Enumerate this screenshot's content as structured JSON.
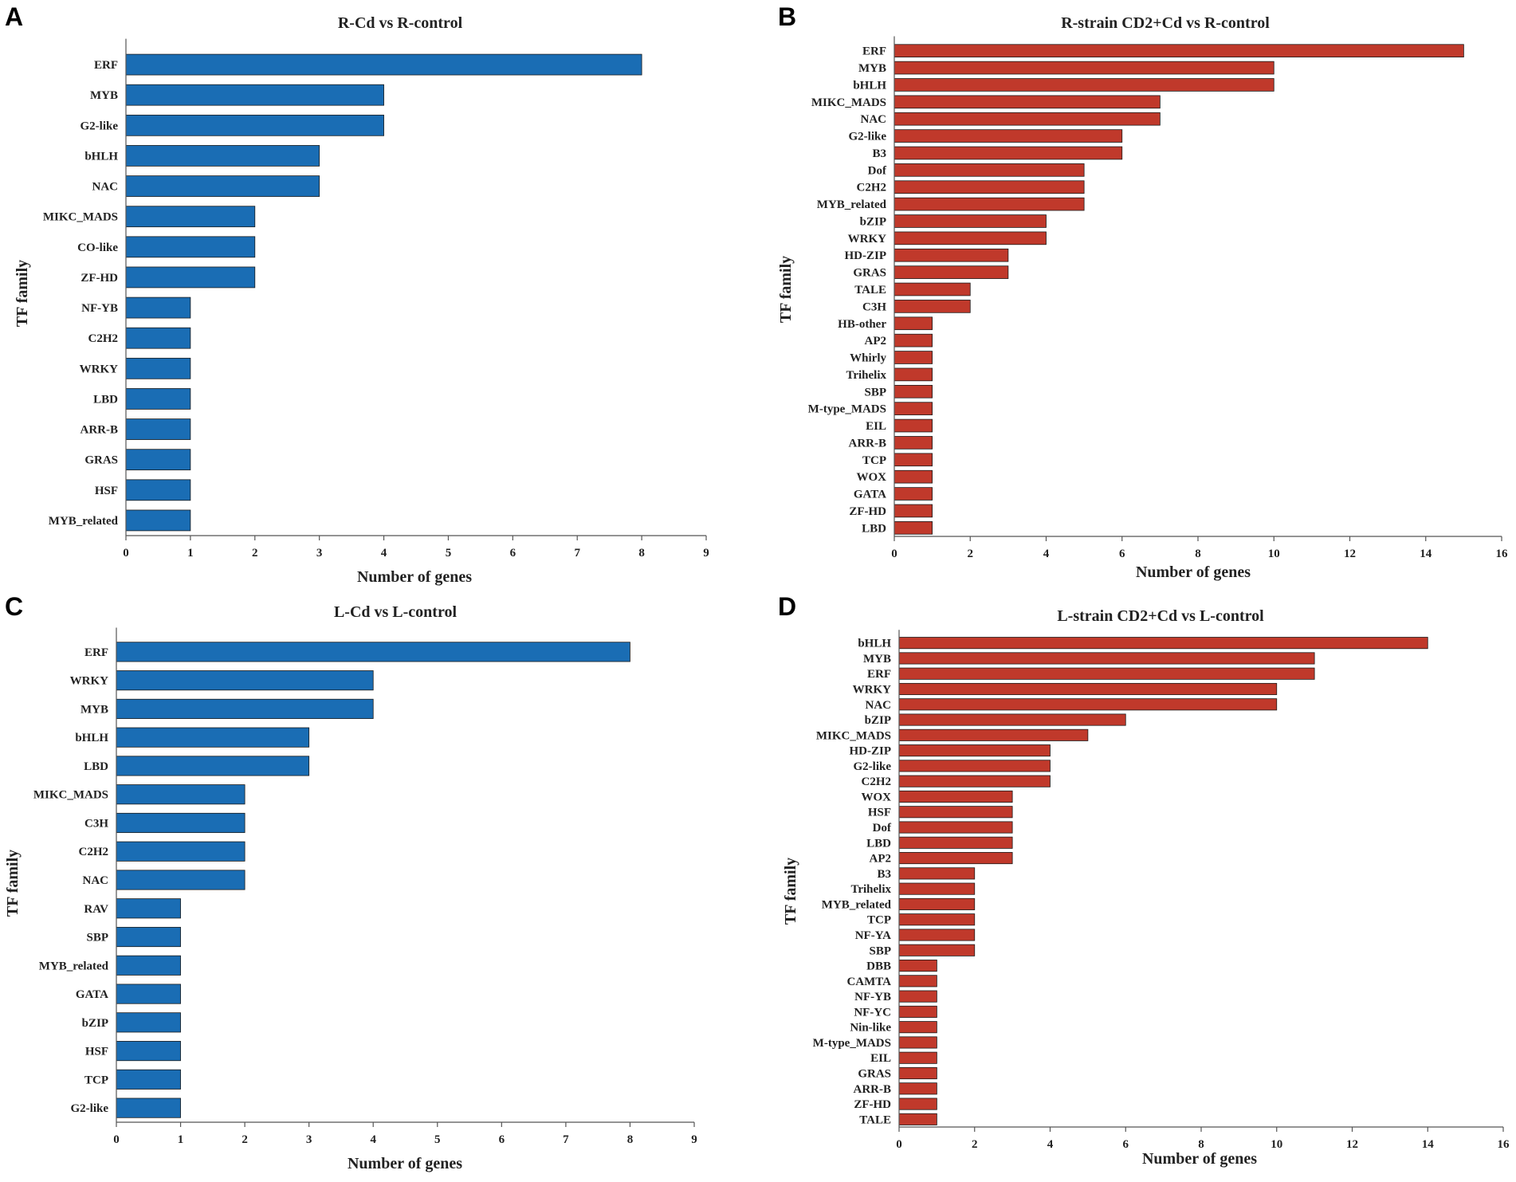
{
  "chart_data": [
    {
      "panel": "A",
      "type": "bar",
      "orientation": "horizontal",
      "title": "R-Cd  vs R-control",
      "xlabel": "Number of genes",
      "ylabel": "TF family",
      "xlim": [
        0,
        9
      ],
      "xticks": [
        0,
        1,
        2,
        3,
        4,
        5,
        6,
        7,
        8,
        9
      ],
      "color": "#1a6db4",
      "grid": false,
      "categories": [
        "ERF",
        "MYB",
        "G2-like",
        "bHLH",
        "NAC",
        "MIKC_MADS",
        "CO-like",
        "ZF-HD",
        "NF-YB",
        "C2H2",
        "WRKY",
        "LBD",
        "ARR-B",
        "GRAS",
        "HSF",
        "MYB_related"
      ],
      "values": [
        8,
        4,
        4,
        3,
        3,
        2,
        2,
        2,
        1,
        1,
        1,
        1,
        1,
        1,
        1,
        1
      ]
    },
    {
      "panel": "B",
      "type": "bar",
      "orientation": "horizontal",
      "title": "R-strain CD2+Cd vs R-control",
      "xlabel": "Number of genes",
      "ylabel": "TF family",
      "xlim": [
        0,
        16
      ],
      "xticks": [
        0,
        2,
        4,
        6,
        8,
        10,
        12,
        14,
        16
      ],
      "color": "#c0392b",
      "grid": false,
      "categories": [
        "ERF",
        "MYB",
        "bHLH",
        "MIKC_MADS",
        "NAC",
        "G2-like",
        "B3",
        "Dof",
        "C2H2",
        "MYB_related",
        "bZIP",
        "WRKY",
        "HD-ZIP",
        "GRAS",
        "TALE",
        "C3H",
        "HB-other",
        "AP2",
        "Whirly",
        "Trihelix",
        "SBP",
        "M-type_MADS",
        "EIL",
        "ARR-B",
        "TCP",
        "WOX",
        "GATA",
        "ZF-HD",
        "LBD"
      ],
      "values": [
        15,
        10,
        10,
        7,
        7,
        6,
        6,
        5,
        5,
        5,
        4,
        4,
        3,
        3,
        2,
        2,
        1,
        1,
        1,
        1,
        1,
        1,
        1,
        1,
        1,
        1,
        1,
        1,
        1
      ]
    },
    {
      "panel": "C",
      "type": "bar",
      "orientation": "horizontal",
      "title": "L-Cd  vs L-control",
      "xlabel": "Number of genes",
      "ylabel": "TF family",
      "xlim": [
        0,
        9
      ],
      "xticks": [
        0,
        1,
        2,
        3,
        4,
        5,
        6,
        7,
        8,
        9
      ],
      "color": "#1a6db4",
      "grid": false,
      "categories": [
        "ERF",
        "WRKY",
        "MYB",
        "bHLH",
        "LBD",
        "MIKC_MADS",
        "C3H",
        "C2H2",
        "NAC",
        "RAV",
        "SBP",
        "MYB_related",
        "GATA",
        "bZIP",
        "HSF",
        "TCP",
        "G2-like"
      ],
      "values": [
        8,
        4,
        4,
        3,
        3,
        2,
        2,
        2,
        2,
        1,
        1,
        1,
        1,
        1,
        1,
        1,
        1
      ]
    },
    {
      "panel": "D",
      "type": "bar",
      "orientation": "horizontal",
      "title": "L-strain CD2+Cd vs L-control",
      "xlabel": "Number of genes",
      "ylabel": "TF family",
      "xlim": [
        0,
        16
      ],
      "xticks": [
        0,
        2,
        4,
        6,
        8,
        10,
        12,
        14,
        16
      ],
      "color": "#c0392b",
      "grid": false,
      "categories": [
        "bHLH",
        "MYB",
        "ERF",
        "WRKY",
        "NAC",
        "bZIP",
        "MIKC_MADS",
        "HD-ZIP",
        "G2-like",
        "C2H2",
        "WOX",
        "HSF",
        "Dof",
        "LBD",
        "AP2",
        "B3",
        "Trihelix",
        "MYB_related",
        "TCP",
        "NF-YA",
        "SBP",
        "DBB",
        "CAMTA",
        "NF-YB",
        "NF-YC",
        "Nin-like",
        "M-type_MADS",
        "EIL",
        "GRAS",
        "ARR-B",
        "ZF-HD",
        "TALE"
      ],
      "values": [
        14,
        11,
        11,
        10,
        10,
        6,
        5,
        4,
        4,
        4,
        3,
        3,
        3,
        3,
        3,
        2,
        2,
        2,
        2,
        2,
        2,
        1,
        1,
        1,
        1,
        1,
        1,
        1,
        1,
        1,
        1,
        1
      ]
    }
  ]
}
